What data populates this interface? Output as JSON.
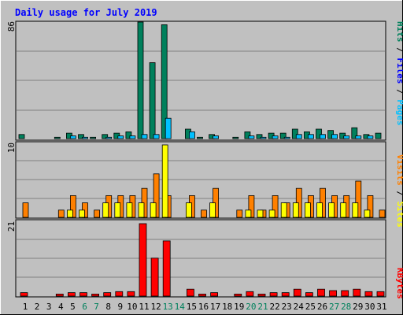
{
  "chart_data": [
    {
      "type": "bar",
      "title": "Daily usage for July 2019",
      "categories": [
        "1",
        "2",
        "3",
        "4",
        "5",
        "6",
        "7",
        "8",
        "9",
        "10",
        "11",
        "12",
        "13",
        "14",
        "15",
        "16",
        "17",
        "18",
        "19",
        "20",
        "21",
        "22",
        "23",
        "24",
        "25",
        "26",
        "27",
        "28",
        "29",
        "30",
        "31"
      ],
      "weekend_days": [
        "6",
        "7",
        "13",
        "14",
        "20",
        "21",
        "27",
        "28"
      ],
      "max_label": "86",
      "ylim": [
        0,
        86
      ],
      "series": [
        {
          "name": "Hits",
          "color": "#00805c",
          "values": [
            3,
            0,
            0,
            1,
            4,
            3,
            1,
            3,
            4,
            5,
            86,
            56,
            84,
            0,
            7,
            1,
            3,
            0,
            1,
            5,
            3,
            4,
            4,
            7,
            5,
            7,
            6,
            4,
            8,
            3,
            4
          ]
        },
        {
          "name": "Files",
          "color": "#0000ff",
          "values": [
            0,
            0,
            0,
            0,
            0,
            0,
            0,
            0,
            0,
            0,
            0,
            0,
            0,
            0,
            0,
            0,
            0,
            0,
            0,
            0,
            0,
            0,
            0,
            0,
            0,
            0,
            0,
            0,
            0,
            0,
            0
          ]
        },
        {
          "name": "Pages",
          "color": "#00c0ff",
          "values": [
            0,
            0,
            0,
            0,
            2,
            1,
            0,
            1,
            2,
            2,
            3,
            3,
            15,
            0,
            5,
            0,
            2,
            0,
            0,
            2,
            1,
            2,
            1,
            3,
            3,
            3,
            3,
            2,
            2,
            2,
            0
          ]
        }
      ],
      "axis_label": {
        "pages": "Pages",
        "sep1": " / ",
        "files": "Files",
        "sep2": " / ",
        "hits": "Hits"
      }
    },
    {
      "type": "bar",
      "categories": [
        "1",
        "2",
        "3",
        "4",
        "5",
        "6",
        "7",
        "8",
        "9",
        "10",
        "11",
        "12",
        "13",
        "14",
        "15",
        "16",
        "17",
        "18",
        "19",
        "20",
        "21",
        "22",
        "23",
        "24",
        "25",
        "26",
        "27",
        "28",
        "29",
        "30",
        "31"
      ],
      "max_label": "10",
      "ylim": [
        0,
        10
      ],
      "series": [
        {
          "name": "Visits",
          "color": "#ff8000",
          "values": [
            2,
            0,
            0,
            1,
            3,
            2,
            1,
            3,
            3,
            3,
            4,
            6,
            3,
            0,
            3,
            1,
            4,
            0,
            1,
            3,
            1,
            3,
            2,
            4,
            3,
            4,
            3,
            3,
            5,
            3,
            1
          ]
        },
        {
          "name": "Sites",
          "color": "#ffff00",
          "values": [
            0,
            0,
            0,
            0,
            1,
            1,
            0,
            2,
            2,
            2,
            2,
            2,
            10,
            0,
            2,
            0,
            2,
            0,
            0,
            1,
            1,
            1,
            2,
            2,
            2,
            2,
            2,
            2,
            2,
            1,
            0
          ]
        }
      ],
      "axis_label": {
        "sites": "Sites",
        "sep": " / ",
        "visits": "Visits"
      }
    },
    {
      "type": "bar",
      "categories": [
        "1",
        "2",
        "3",
        "4",
        "5",
        "6",
        "7",
        "8",
        "9",
        "10",
        "11",
        "12",
        "13",
        "14",
        "15",
        "16",
        "17",
        "18",
        "19",
        "20",
        "21",
        "22",
        "23",
        "24",
        "25",
        "26",
        "27",
        "28",
        "29",
        "30",
        "31"
      ],
      "max_label": "21",
      "ylim": [
        0,
        21
      ],
      "series": [
        {
          "name": "KBytes",
          "color": "#ff0000",
          "values": [
            1,
            0,
            0,
            0.6,
            1,
            1,
            0.6,
            1,
            1.3,
            1.3,
            21,
            11,
            16,
            0,
            2,
            0.6,
            1,
            0,
            0.6,
            1.3,
            0.6,
            1,
            1,
            2,
            1,
            2,
            1.6,
            1.6,
            2,
            1.3,
            1.3
          ]
        }
      ],
      "axis_label": {
        "kbytes": "KBytes"
      }
    }
  ],
  "colors": {
    "background": "#c0c0c0",
    "title": "#0000ff",
    "weekday_label": "#000000",
    "weekend_label": "#00805c"
  }
}
